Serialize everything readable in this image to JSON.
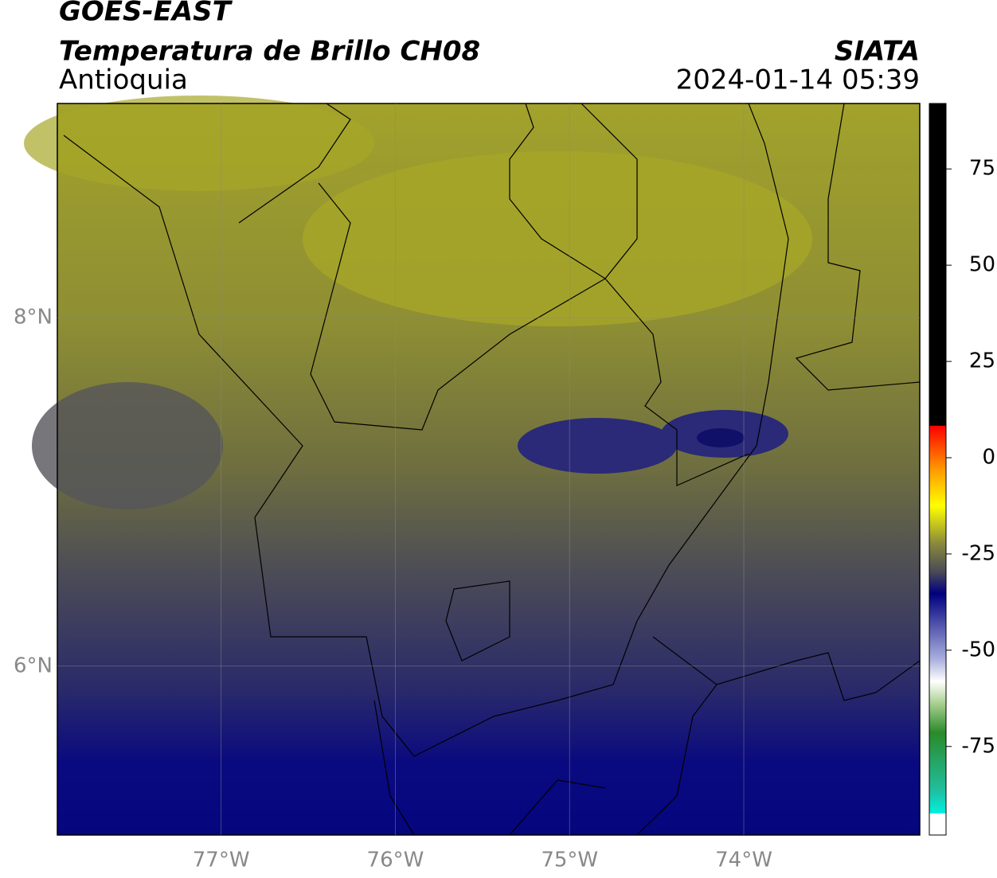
{
  "header": {
    "title": "GOES-EAST",
    "subtitle": "Temperatura de Brillo CH08",
    "region": "Antioquia",
    "source": "SIATA",
    "datetime": "2024-01-14 05:39"
  },
  "map": {
    "xlim": [
      -77.94,
      -72.99
    ],
    "ylim": [
      5.03,
      9.23
    ],
    "xticks": [
      {
        "value": -77,
        "label": "77°W"
      },
      {
        "value": -76,
        "label": "76°W"
      },
      {
        "value": -75,
        "label": "75°W"
      },
      {
        "value": -74,
        "label": "74°W"
      }
    ],
    "yticks": [
      {
        "value": 8,
        "label": "8°N"
      },
      {
        "value": 6,
        "label": "6°N"
      }
    ],
    "grid": true
  },
  "colorbar": {
    "lim": [
      -98,
      92
    ],
    "ticks": [
      75,
      50,
      25,
      0,
      -25,
      -50,
      -75
    ]
  }
}
